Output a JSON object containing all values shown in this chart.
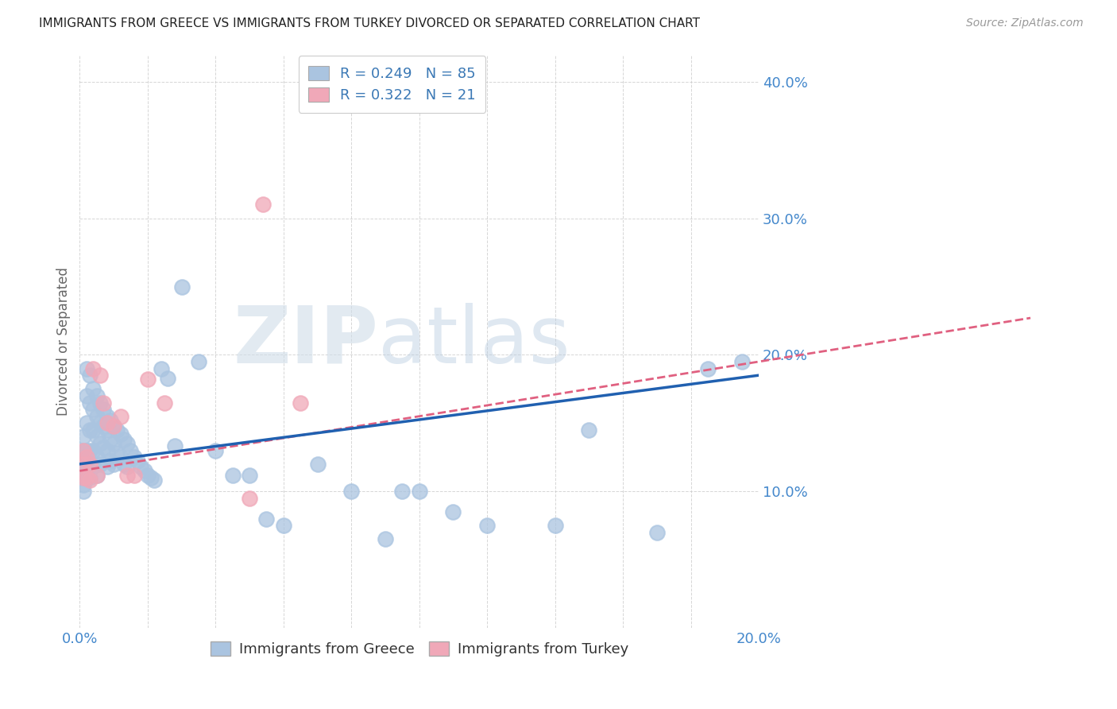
{
  "title": "IMMIGRANTS FROM GREECE VS IMMIGRANTS FROM TURKEY DIVORCED OR SEPARATED CORRELATION CHART",
  "source": "Source: ZipAtlas.com",
  "ylabel": "Divorced or Separated",
  "xlim": [
    0.0,
    0.2
  ],
  "ylim": [
    0.0,
    0.42
  ],
  "xtick_vals": [
    0.0,
    0.02,
    0.04,
    0.06,
    0.08,
    0.1,
    0.12,
    0.14,
    0.16,
    0.18,
    0.2
  ],
  "ytick_vals": [
    0.0,
    0.1,
    0.2,
    0.3,
    0.4
  ],
  "xtick_labels": [
    "0.0%",
    "",
    "",
    "",
    "",
    "",
    "",
    "",
    "",
    "",
    "20.0%"
  ],
  "ytick_labels": [
    "",
    "10.0%",
    "20.0%",
    "30.0%",
    "40.0%"
  ],
  "greece_R": 0.249,
  "greece_N": 85,
  "turkey_R": 0.322,
  "turkey_N": 21,
  "greece_color": "#aac4e0",
  "turkey_color": "#f0a8b8",
  "greece_line_color": "#2060b0",
  "turkey_line_color": "#e06080",
  "watermark_zip": "ZIP",
  "watermark_atlas": "atlas",
  "background_color": "#ffffff",
  "legend_label_greece": "Immigrants from Greece",
  "legend_label_turkey": "Immigrants from Turkey",
  "greece_x": [
    0.001,
    0.001,
    0.001,
    0.001,
    0.001,
    0.001,
    0.001,
    0.002,
    0.002,
    0.002,
    0.002,
    0.002,
    0.002,
    0.002,
    0.003,
    0.003,
    0.003,
    0.003,
    0.003,
    0.003,
    0.004,
    0.004,
    0.004,
    0.004,
    0.004,
    0.005,
    0.005,
    0.005,
    0.005,
    0.005,
    0.006,
    0.006,
    0.006,
    0.006,
    0.007,
    0.007,
    0.007,
    0.008,
    0.008,
    0.008,
    0.008,
    0.009,
    0.009,
    0.009,
    0.01,
    0.01,
    0.01,
    0.011,
    0.011,
    0.012,
    0.012,
    0.013,
    0.013,
    0.014,
    0.014,
    0.015,
    0.016,
    0.017,
    0.018,
    0.019,
    0.02,
    0.021,
    0.022,
    0.024,
    0.026,
    0.028,
    0.03,
    0.035,
    0.04,
    0.045,
    0.05,
    0.055,
    0.06,
    0.07,
    0.08,
    0.09,
    0.095,
    0.1,
    0.11,
    0.12,
    0.14,
    0.15,
    0.17,
    0.185,
    0.195
  ],
  "greece_y": [
    0.14,
    0.13,
    0.12,
    0.115,
    0.11,
    0.105,
    0.1,
    0.19,
    0.17,
    0.15,
    0.13,
    0.12,
    0.115,
    0.11,
    0.185,
    0.165,
    0.145,
    0.13,
    0.12,
    0.11,
    0.175,
    0.16,
    0.145,
    0.13,
    0.118,
    0.17,
    0.155,
    0.14,
    0.125,
    0.112,
    0.165,
    0.15,
    0.135,
    0.12,
    0.16,
    0.148,
    0.132,
    0.155,
    0.145,
    0.13,
    0.118,
    0.152,
    0.138,
    0.122,
    0.148,
    0.135,
    0.12,
    0.145,
    0.128,
    0.142,
    0.125,
    0.138,
    0.12,
    0.135,
    0.118,
    0.13,
    0.125,
    0.122,
    0.118,
    0.115,
    0.112,
    0.11,
    0.108,
    0.19,
    0.183,
    0.133,
    0.25,
    0.195,
    0.13,
    0.112,
    0.112,
    0.08,
    0.075,
    0.12,
    0.1,
    0.065,
    0.1,
    0.1,
    0.085,
    0.075,
    0.075,
    0.145,
    0.07,
    0.19,
    0.195
  ],
  "turkey_x": [
    0.001,
    0.001,
    0.001,
    0.002,
    0.002,
    0.003,
    0.003,
    0.004,
    0.005,
    0.006,
    0.007,
    0.008,
    0.01,
    0.012,
    0.014,
    0.016,
    0.02,
    0.025,
    0.05,
    0.054,
    0.065
  ],
  "turkey_y": [
    0.13,
    0.12,
    0.11,
    0.125,
    0.11,
    0.12,
    0.108,
    0.19,
    0.112,
    0.185,
    0.165,
    0.15,
    0.148,
    0.155,
    0.112,
    0.112,
    0.182,
    0.165,
    0.095,
    0.31,
    0.165
  ],
  "greece_line": [
    0.12,
    0.185
  ],
  "turkey_line": [
    0.115,
    0.195
  ],
  "turkey_dash_extend": [
    0.0,
    0.28
  ]
}
